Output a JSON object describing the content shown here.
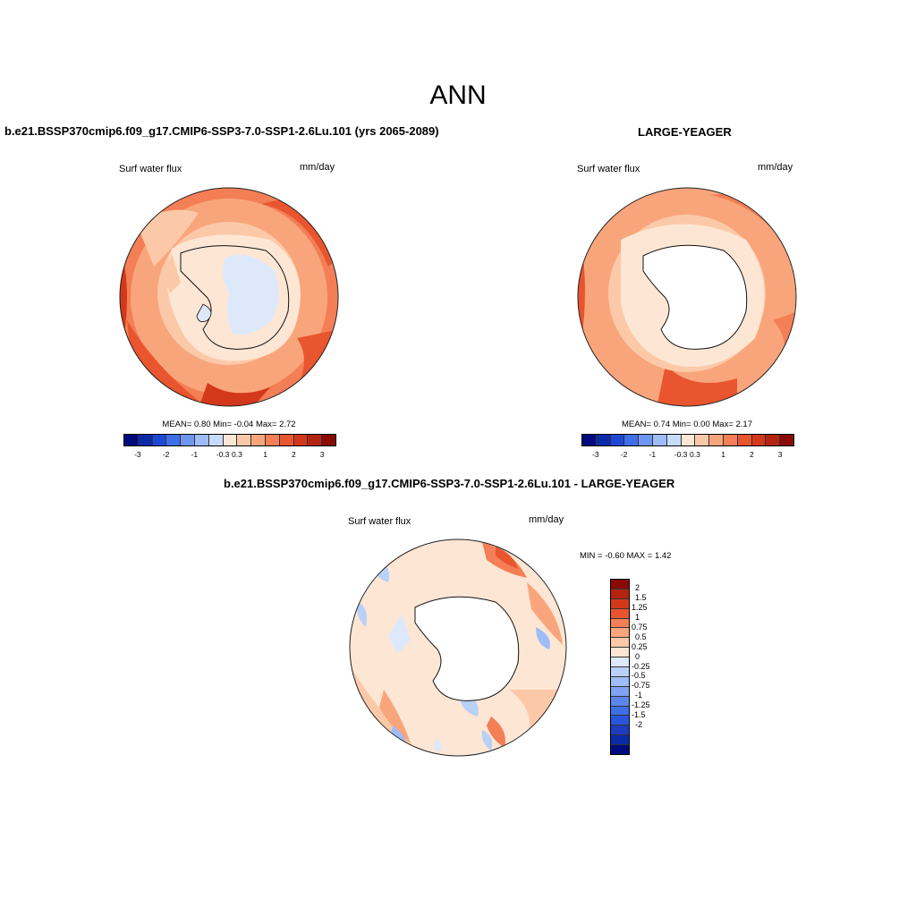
{
  "title": "ANN",
  "panels": [
    {
      "title": "b.e21.BSSP370cmip6.f09_g17.CMIP6-SSP3-7.0-SSP1-2.6Lu.101 (yrs 2065-2089)",
      "variable": "Surf water flux",
      "units": "mm/day",
      "stats": "MEAN=  0.80  Min=  -0.04  Max=  2.72"
    },
    {
      "title": "LARGE-YEAGER",
      "variable": "Surf water flux",
      "units": "mm/day",
      "stats": "MEAN=  0.74  Min=  0.00  Max=  2.17"
    },
    {
      "title": "b.e21.BSSP370cmip6.f09_g17.CMIP6-SSP3-7.0-SSP1-2.6Lu.101 - LARGE-YEAGER",
      "variable": "Surf water flux",
      "units": "mm/day",
      "stats": "MIN =  -0.60 MAX =   1.42"
    }
  ],
  "colorbar_h": {
    "colors": [
      "#000c7d",
      "#0a2aa8",
      "#1d48d6",
      "#3f6ee9",
      "#6f95f2",
      "#9ebcf7",
      "#c7dcfb",
      "#fde6d4",
      "#fcc9a8",
      "#f9a57c",
      "#f47e56",
      "#e9552f",
      "#d4381a",
      "#b42410",
      "#8a0a05"
    ],
    "ticks": [
      "-3",
      "-2",
      "-1",
      "-0.3",
      "0.3",
      "1",
      "2",
      "3"
    ]
  },
  "colorbar_v": {
    "colors": [
      "#8a0a05",
      "#b42410",
      "#d4381a",
      "#e9552f",
      "#f47e56",
      "#f9a57c",
      "#fcc9a8",
      "#fde6d4",
      "#dde9fb",
      "#b9d0f8",
      "#9ebcf7",
      "#7fa2f2",
      "#5c86ec",
      "#3f6ee9",
      "#2a55dc",
      "#1d3cbf",
      "#0a2aa8",
      "#000c7d"
    ],
    "ticks": [
      "2",
      "1.5",
      "1.25",
      "1",
      "0.75",
      "0.5",
      "0.25",
      "0",
      "-0.25",
      "-0.5",
      "-0.75",
      "-1",
      "-1.25",
      "-1.5",
      "-2"
    ]
  }
}
